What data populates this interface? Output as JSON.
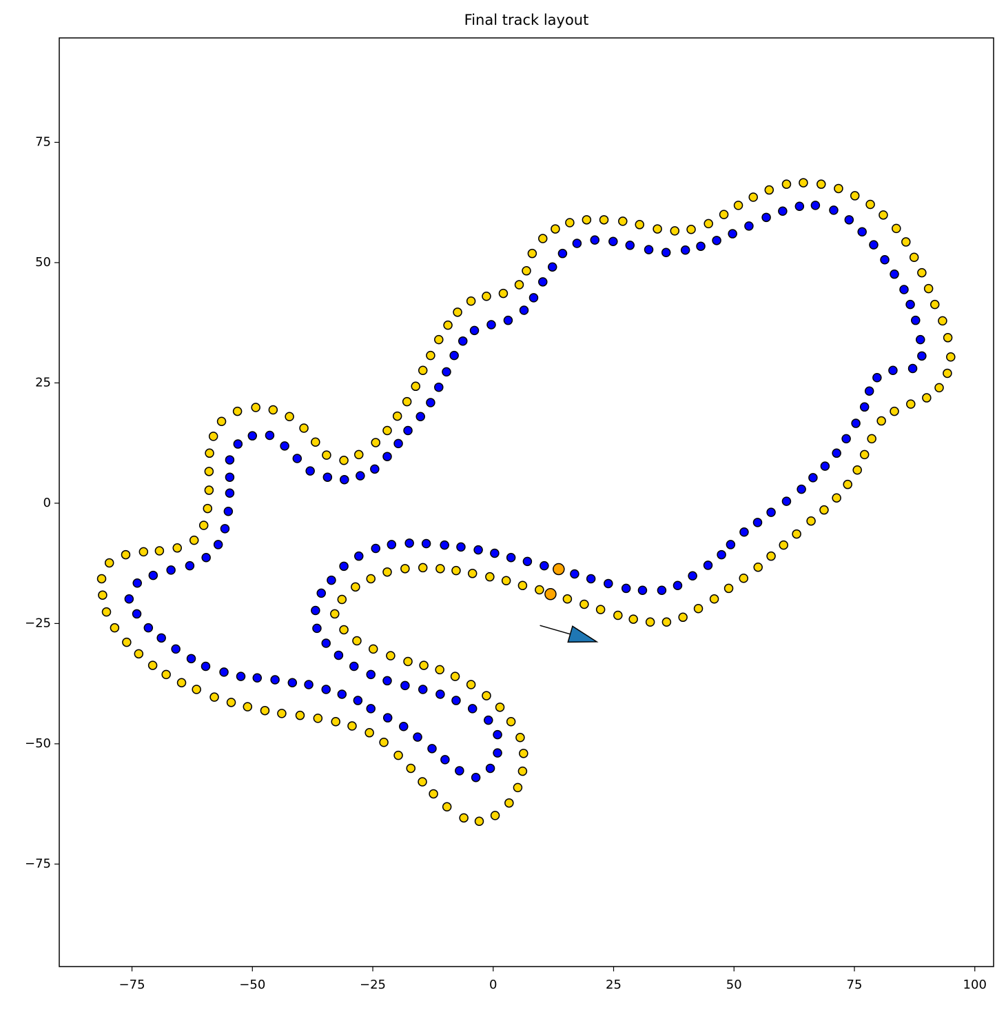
{
  "chart_data": {
    "type": "scatter",
    "title": "Final track layout",
    "xlim": [
      -90.1,
      103.9
    ],
    "ylim": [
      -96.3,
      96.7
    ],
    "xticks": [
      {
        "value": -75,
        "label": "−75"
      },
      {
        "value": -50,
        "label": "−50"
      },
      {
        "value": -25,
        "label": "−25"
      },
      0,
      25,
      50,
      75,
      100
    ],
    "yticks": [
      {
        "value": -75,
        "label": "−75"
      },
      {
        "value": -50,
        "label": "−50"
      },
      {
        "value": -25,
        "label": "−25"
      },
      0,
      25,
      50,
      75
    ],
    "grid": false,
    "series": [
      {
        "color": "#ffd700",
        "size": 6,
        "x": [
          95.0,
          94.4,
          93.3,
          91.7,
          90.4,
          89.0,
          87.4,
          85.7,
          83.7,
          81.0,
          78.3,
          75.1,
          71.7,
          68.1,
          64.4,
          60.9,
          57.3,
          54.0,
          50.9,
          47.9,
          44.7,
          41.1,
          37.7,
          34.1,
          30.4,
          26.9,
          23.0,
          19.4,
          15.9,
          12.9,
          10.3,
          8.1,
          6.9,
          5.4,
          2.1,
          -1.4,
          -4.6,
          -7.4,
          -9.4,
          -11.3,
          -13.0,
          -14.6,
          -16.1,
          -17.9,
          -19.9,
          -22.0,
          -24.4,
          -27.9,
          -31.0,
          -34.6,
          -36.9,
          -39.3,
          -42.3,
          -45.7,
          -49.3,
          -53.1,
          -56.4,
          -58.1,
          -58.9,
          -59.0,
          -59.0,
          -59.3,
          -60.1,
          -62.1,
          -65.6,
          -69.3,
          -72.6,
          -76.3,
          -79.7,
          -81.3,
          -81.1,
          -80.3,
          -78.6,
          -76.1,
          -73.6,
          -70.7,
          -67.9,
          -64.7,
          -61.6,
          -57.9,
          -54.4,
          -51.0,
          -47.4,
          -43.9,
          -40.1,
          -36.4,
          -32.7,
          -29.3,
          -25.7,
          -22.7,
          -19.7,
          -17.1,
          -14.7,
          -12.4,
          -9.6,
          -6.1,
          -2.9,
          0.4,
          3.3,
          5.1,
          6.1,
          6.3,
          5.6,
          3.7,
          1.4,
          -1.4,
          -4.6,
          -7.9,
          -11.1,
          -14.4,
          -17.7,
          -21.3,
          -24.9,
          -28.3,
          -31.0,
          -32.9,
          -31.4,
          -28.6,
          -25.4,
          -22.0,
          -18.3,
          -14.6,
          -11.0,
          -7.7,
          -4.3,
          -0.7,
          2.7,
          6.1,
          9.6,
          15.4,
          18.9,
          22.3,
          25.9,
          29.1,
          32.6,
          36.0,
          39.4,
          42.6,
          45.9,
          48.9,
          52.0,
          55.0,
          57.7,
          60.3,
          63.0,
          66.0,
          68.7,
          71.3,
          73.6,
          75.6,
          77.1,
          78.6,
          80.6,
          83.3,
          86.7,
          90.0,
          92.6,
          94.3
        ],
        "y": [
          30.4,
          34.4,
          37.9,
          41.3,
          44.6,
          47.9,
          51.1,
          54.3,
          57.1,
          59.9,
          62.1,
          63.9,
          65.4,
          66.3,
          66.6,
          66.3,
          65.1,
          63.6,
          61.9,
          60.0,
          58.1,
          56.9,
          56.6,
          57.0,
          57.9,
          58.6,
          58.9,
          58.9,
          58.3,
          57.0,
          55.0,
          51.9,
          48.3,
          45.4,
          43.6,
          43.0,
          42.0,
          39.7,
          37.0,
          34.0,
          30.7,
          27.6,
          24.3,
          21.1,
          18.1,
          15.1,
          12.6,
          10.1,
          8.9,
          10.0,
          12.7,
          15.6,
          18.0,
          19.4,
          19.9,
          19.1,
          17.0,
          13.9,
          10.4,
          6.6,
          2.7,
          -1.1,
          -4.6,
          -7.7,
          -9.3,
          -9.9,
          -10.1,
          -10.7,
          -12.4,
          -15.7,
          -19.1,
          -22.6,
          -25.9,
          -28.9,
          -31.3,
          -33.7,
          -35.6,
          -37.3,
          -38.7,
          -40.3,
          -41.4,
          -42.3,
          -43.1,
          -43.7,
          -44.1,
          -44.7,
          -45.4,
          -46.3,
          -47.7,
          -49.7,
          -52.4,
          -55.1,
          -57.9,
          -60.4,
          -63.1,
          -65.4,
          -66.1,
          -64.9,
          -62.3,
          -59.1,
          -55.7,
          -52.0,
          -48.7,
          -45.4,
          -42.4,
          -40.0,
          -37.7,
          -36.0,
          -34.6,
          -33.7,
          -32.9,
          -31.7,
          -30.3,
          -28.6,
          -26.3,
          -23.0,
          -20.0,
          -17.4,
          -15.7,
          -14.3,
          -13.6,
          -13.4,
          -13.6,
          -14.0,
          -14.6,
          -15.3,
          -16.1,
          -17.1,
          -18.0,
          -19.9,
          -21.0,
          -22.1,
          -23.3,
          -24.1,
          -24.7,
          -24.7,
          -23.7,
          -21.9,
          -19.9,
          -17.7,
          -15.6,
          -13.3,
          -11.0,
          -8.7,
          -6.4,
          -3.7,
          -1.4,
          1.1,
          3.9,
          6.9,
          10.1,
          13.4,
          17.1,
          19.1,
          20.6,
          21.9,
          24.0,
          27.0
        ]
      },
      {
        "color": "#0000ff",
        "size": 6,
        "x": [
          89.0,
          88.7,
          87.7,
          86.6,
          85.3,
          83.3,
          81.3,
          79.0,
          76.6,
          73.9,
          70.7,
          66.9,
          63.6,
          60.1,
          56.7,
          53.1,
          49.7,
          46.4,
          43.1,
          39.9,
          35.9,
          32.3,
          28.4,
          24.9,
          21.1,
          17.4,
          14.4,
          12.3,
          10.3,
          8.4,
          6.4,
          3.1,
          -0.4,
          -3.9,
          -6.3,
          -8.1,
          -9.7,
          -11.3,
          -13.0,
          -15.1,
          -17.7,
          -19.7,
          -22.0,
          -24.6,
          -27.6,
          -30.9,
          -34.4,
          -38.0,
          -40.7,
          -43.3,
          -46.4,
          -50.0,
          -53.0,
          -54.7,
          -54.7,
          -54.7,
          -55.0,
          -55.7,
          -57.1,
          -59.6,
          -63.0,
          -66.9,
          -70.6,
          -73.9,
          -75.6,
          -74.0,
          -71.6,
          -68.9,
          -65.9,
          -62.7,
          -59.7,
          -55.9,
          -52.4,
          -49.0,
          -45.3,
          -41.7,
          -38.3,
          -34.7,
          -31.4,
          -28.1,
          -25.4,
          -21.9,
          -18.6,
          -15.7,
          -12.7,
          -10.0,
          -7.0,
          -3.6,
          -0.6,
          0.9,
          0.9,
          -1.0,
          -4.3,
          -7.7,
          -11.0,
          -14.6,
          -18.3,
          -22.0,
          -25.4,
          -28.9,
          -32.1,
          -34.7,
          -36.6,
          -36.9,
          -35.7,
          -33.6,
          -31.0,
          -27.9,
          -24.4,
          -21.1,
          -17.4,
          -13.9,
          -10.1,
          -6.7,
          -3.1,
          0.3,
          3.7,
          7.1,
          10.6,
          16.9,
          20.3,
          23.9,
          27.6,
          31.0,
          35.0,
          38.3,
          41.4,
          44.6,
          47.4,
          49.3,
          52.1,
          54.9,
          57.7,
          60.9,
          64.0,
          66.4,
          68.9,
          71.3,
          73.3,
          75.3,
          77.1,
          78.1,
          79.7,
          83.0,
          87.1
        ],
        "y": [
          30.6,
          34.0,
          38.0,
          41.3,
          44.4,
          47.6,
          50.6,
          53.7,
          56.4,
          58.9,
          60.9,
          61.9,
          61.7,
          60.7,
          59.4,
          57.6,
          56.0,
          54.6,
          53.4,
          52.6,
          52.1,
          52.7,
          53.6,
          54.4,
          54.7,
          54.0,
          51.9,
          49.1,
          46.0,
          42.7,
          40.1,
          38.0,
          37.1,
          35.9,
          33.7,
          30.7,
          27.3,
          24.1,
          20.9,
          18.0,
          15.1,
          12.4,
          9.7,
          7.1,
          5.7,
          4.9,
          5.4,
          6.7,
          9.3,
          11.9,
          14.1,
          14.0,
          12.3,
          9.0,
          5.4,
          2.1,
          -1.7,
          -5.3,
          -8.6,
          -11.3,
          -13.0,
          -13.9,
          -15.0,
          -16.6,
          -19.9,
          -23.0,
          -25.9,
          -28.0,
          -30.3,
          -32.3,
          -33.9,
          -35.1,
          -36.0,
          -36.3,
          -36.7,
          -37.3,
          -37.7,
          -38.7,
          -39.7,
          -41.0,
          -42.7,
          -44.6,
          -46.4,
          -48.6,
          -51.0,
          -53.3,
          -55.6,
          -57.0,
          -55.1,
          -51.9,
          -48.1,
          -45.1,
          -42.7,
          -41.0,
          -39.7,
          -38.7,
          -37.9,
          -36.9,
          -35.6,
          -33.9,
          -31.6,
          -29.1,
          -26.0,
          -22.3,
          -18.7,
          -16.0,
          -13.1,
          -11.0,
          -9.4,
          -8.6,
          -8.3,
          -8.4,
          -8.7,
          -9.1,
          -9.7,
          -10.4,
          -11.3,
          -12.1,
          -13.0,
          -14.7,
          -15.7,
          -16.7,
          -17.7,
          -18.1,
          -18.1,
          -17.1,
          -15.1,
          -12.9,
          -10.7,
          -8.6,
          -6.0,
          -4.0,
          -1.9,
          0.4,
          2.9,
          5.3,
          7.7,
          10.4,
          13.4,
          16.6,
          20.0,
          23.3,
          26.1,
          27.6,
          28.0
        ]
      },
      {
        "color": "#ffa500",
        "size": 8,
        "x": [
          13.6,
          11.9
        ],
        "y": [
          -13.7,
          -18.9
        ]
      }
    ],
    "arrow": {
      "x": [
        9.7,
        21.5
      ],
      "y": [
        -25.4,
        -28.8
      ],
      "color": "#1f77b4"
    }
  }
}
